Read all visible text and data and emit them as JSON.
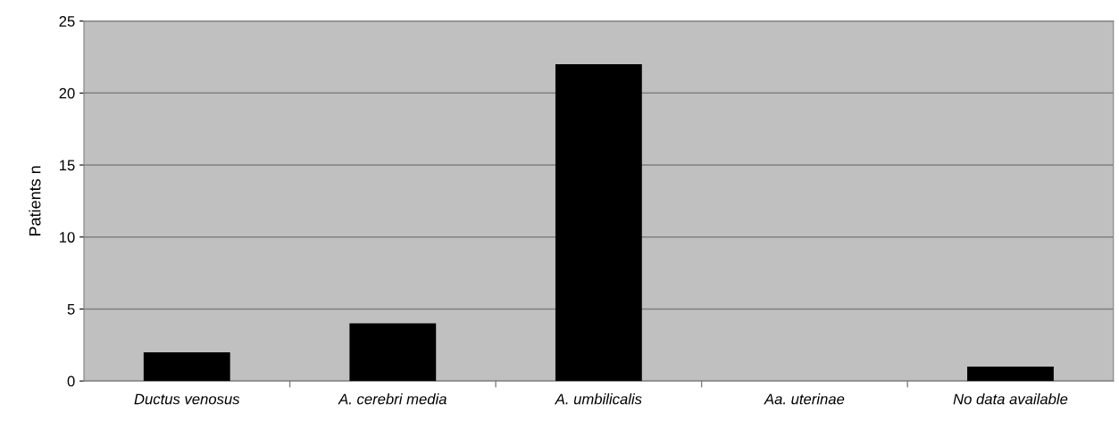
{
  "chart_data": {
    "type": "bar",
    "ylabel": "Patients n",
    "categories": [
      "Ductus venosus",
      "A. cerebri media",
      "A. umbilicalis",
      "Aa. uterinae",
      "No data available"
    ],
    "values": [
      2,
      4,
      22,
      0,
      1
    ],
    "color": "#000000",
    "ylim": [
      0,
      25
    ],
    "yticks": [
      0,
      5,
      10,
      15,
      20,
      25
    ],
    "grid": "y"
  }
}
